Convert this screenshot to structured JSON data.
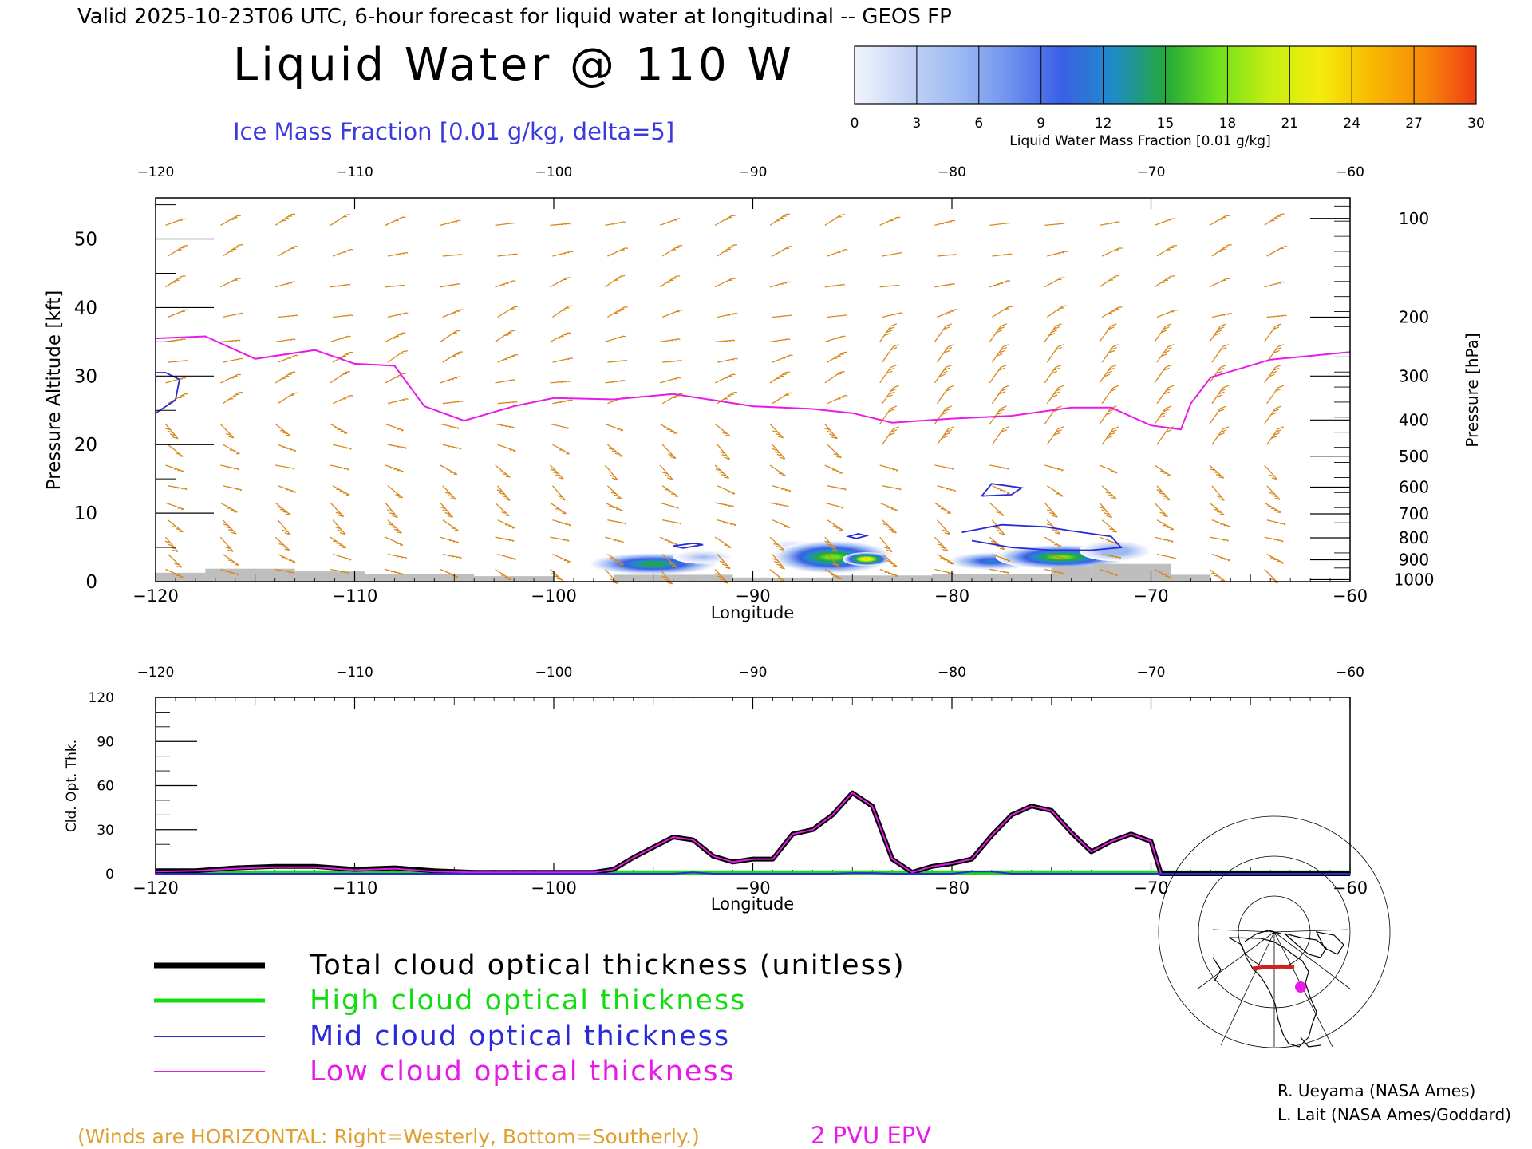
{
  "header": {
    "valid_line": "Valid 2025-10-23T06 UTC, 6-hour forecast for liquid water at longitudinal -- GEOS FP",
    "title": "Liquid Water @ 110 W",
    "subtitle": "Ice Mass Fraction [0.01 g/kg, delta=5]"
  },
  "colorbar": {
    "label": "Liquid Water Mass Fraction [0.01 g/kg]",
    "ticks": [
      "0",
      "3",
      "6",
      "9",
      "12",
      "15",
      "18",
      "21",
      "24",
      "27",
      "30"
    ],
    "colors": [
      "#f2f4fb",
      "#c4d4f6",
      "#9dbaf2",
      "#6f92ef",
      "#3a5fe6",
      "#1f8cc8",
      "#22a83a",
      "#6fe01a",
      "#c6ee12",
      "#f4ec0c",
      "#f8b800",
      "#f78a08",
      "#f03c14"
    ]
  },
  "colors": {
    "wind_barb": "#d8881e",
    "epv": "#e81ae8",
    "ice": "#2a2ad8",
    "orography": "#bebebe"
  },
  "chart_data": [
    {
      "type": "heatmap",
      "name": "cross-section",
      "xlabel": "Longitude",
      "ylabel": "Pressure Altitude [kft]",
      "ylabel_right": "Pressure [hPa]",
      "xlim": [
        -120,
        -60
      ],
      "ylim": [
        0,
        56
      ],
      "x_ticks": [
        "−120",
        "−110",
        "−100",
        "−90",
        "−80",
        "−70",
        "−60"
      ],
      "y_ticks": [
        "0",
        "10",
        "20",
        "30",
        "40",
        "50"
      ],
      "pressure_ticks": [
        {
          "label": "100",
          "kft": 53
        },
        {
          "label": "200",
          "kft": 38.6
        },
        {
          "label": "300",
          "kft": 30
        },
        {
          "label": "400",
          "kft": 23.6
        },
        {
          "label": "500",
          "kft": 18.3
        },
        {
          "label": "600",
          "kft": 13.8
        },
        {
          "label": "700",
          "kft": 9.9
        },
        {
          "label": "800",
          "kft": 6.4
        },
        {
          "label": "900",
          "kft": 3.2
        },
        {
          "label": "1000",
          "kft": 0.3
        }
      ],
      "liquid_water_blobs": [
        {
          "lon": -95.0,
          "kft": 2.6,
          "rx": 3.2,
          "ry": 1.6,
          "max": 17
        },
        {
          "lon": -92.5,
          "kft": 3.6,
          "rx": 1.5,
          "ry": 1.0,
          "max": 5
        },
        {
          "lon": -88.0,
          "kft": 5.2,
          "rx": 1.2,
          "ry": 0.9,
          "max": 3
        },
        {
          "lon": -86.0,
          "kft": 3.6,
          "rx": 3.0,
          "ry": 2.4,
          "max": 20
        },
        {
          "lon": -84.3,
          "kft": 3.3,
          "rx": 1.2,
          "ry": 1.0,
          "max": 28
        },
        {
          "lon": -78.0,
          "kft": 3.0,
          "rx": 2.2,
          "ry": 1.3,
          "max": 12
        },
        {
          "lon": -74.5,
          "kft": 3.6,
          "rx": 3.3,
          "ry": 1.8,
          "max": 20
        },
        {
          "lon": -71.8,
          "kft": 4.5,
          "rx": 1.8,
          "ry": 1.5,
          "max": 8
        }
      ],
      "epv_2pvu": {
        "lon": [
          -120,
          -117.5,
          -115,
          -112,
          -110,
          -108,
          -106.5,
          -104.5,
          -102,
          -100,
          -97,
          -94,
          -90,
          -87,
          -85,
          -83,
          -80,
          -77,
          -74,
          -72,
          -70,
          -68.5,
          -68,
          -67,
          -64,
          -60
        ],
        "kft": [
          35.5,
          35.8,
          32.5,
          33.8,
          31.8,
          31.5,
          25.6,
          23.5,
          25.6,
          26.8,
          26.6,
          27.4,
          25.6,
          25.2,
          24.6,
          23.2,
          23.8,
          24.2,
          25.4,
          25.4,
          22.8,
          22.2,
          26,
          29.8,
          32.4,
          33.5
        ]
      },
      "ice_contours": [
        {
          "lon": [
            -120,
            -119,
            -118.8,
            -119.5,
            -120
          ],
          "kft": [
            24.6,
            26.5,
            29.5,
            30.5,
            30.5
          ]
        },
        {
          "lon": [
            -93.5,
            -92.5,
            -93,
            -94,
            -93.5
          ],
          "kft": [
            4.9,
            5.4,
            5.6,
            5.2,
            4.9
          ]
        },
        {
          "lon": [
            -84.8,
            -84.3,
            -84.7,
            -85.2,
            -84.8
          ],
          "kft": [
            6.3,
            6.7,
            7.0,
            6.6,
            6.3
          ]
        },
        {
          "lon": [
            -78.5,
            -77,
            -76.5,
            -78,
            -78.5
          ],
          "kft": [
            12.5,
            12.7,
            13.7,
            14.3,
            12.5
          ]
        },
        {
          "lon": [
            -79.5,
            -77.5,
            -75.3,
            -74,
            -72,
            -71.5,
            -73,
            -75,
            -77,
            -79
          ],
          "kft": [
            7.2,
            8.3,
            8.0,
            7.4,
            6.6,
            5.0,
            4.6,
            4.6,
            5.0,
            6.0
          ]
        }
      ],
      "orography": [
        {
          "lon0": -120,
          "lon1": -117.5,
          "kft": 1.3
        },
        {
          "lon0": -117.5,
          "lon1": -113,
          "kft": 1.9
        },
        {
          "lon0": -113,
          "lon1": -109.5,
          "kft": 1.5
        },
        {
          "lon0": -109.5,
          "lon1": -104,
          "kft": 1.1
        },
        {
          "lon0": -104,
          "lon1": -100,
          "kft": 0.8
        },
        {
          "lon0": -97,
          "lon1": -91,
          "kft": 1.0
        },
        {
          "lon0": -91,
          "lon1": -86,
          "kft": 0.6
        },
        {
          "lon0": -86,
          "lon1": -81,
          "kft": 0.9
        },
        {
          "lon0": -81,
          "lon1": -75,
          "kft": 1.1
        },
        {
          "lon0": -75,
          "lon1": -73,
          "kft": 2.3
        },
        {
          "lon0": -73,
          "lon1": -69,
          "kft": 2.6
        },
        {
          "lon0": -69,
          "lon1": -67,
          "kft": 1.0
        }
      ]
    },
    {
      "type": "line",
      "name": "cloud-optical-thickness",
      "xlabel": "Longitude",
      "ylabel": "Cld. Opt. Thk.",
      "xlim": [
        -120,
        -60
      ],
      "ylim": [
        0,
        120
      ],
      "x_ticks": [
        "−120",
        "−110",
        "−100",
        "−90",
        "−80",
        "−70",
        "−60"
      ],
      "y_ticks": [
        "0",
        "30",
        "60",
        "90",
        "120"
      ],
      "x": [
        -120,
        -118,
        -116,
        -114,
        -112,
        -110,
        -108,
        -106,
        -104,
        -100,
        -98,
        -97,
        -96,
        -95,
        -94,
        -93,
        -92,
        -91,
        -90,
        -89,
        -88,
        -87,
        -86,
        -85,
        -84,
        -83,
        -82,
        -81,
        -80,
        -79,
        -78,
        -77,
        -76,
        -75,
        -74,
        -73,
        -72,
        -71,
        -70,
        -69.5,
        -65,
        -60
      ],
      "series": [
        {
          "name": "Total cloud optical thickness (unitless)",
          "color": "#000000",
          "width": 6,
          "values": [
            2,
            2,
            4,
            5,
            5,
            3,
            4,
            2,
            1,
            1,
            1,
            3,
            11,
            18,
            25,
            23,
            12,
            8,
            10,
            10,
            27,
            30,
            40,
            55,
            46,
            10,
            1,
            5,
            7,
            10,
            26,
            40,
            46,
            43,
            28,
            15,
            22,
            27,
            22,
            0,
            0,
            0
          ]
        },
        {
          "name": "Low cloud optical thickness",
          "color": "#e81ae8",
          "width": 2,
          "values": [
            1.5,
            2,
            3.5,
            4.5,
            4.5,
            2.5,
            3.5,
            1.5,
            1,
            1,
            1,
            3,
            11,
            18,
            25,
            23,
            12,
            8,
            10,
            10,
            27,
            30,
            40,
            55,
            46,
            10,
            1,
            5,
            7,
            10,
            26,
            40,
            46,
            43,
            28,
            15,
            22,
            27,
            22,
            0,
            0,
            0
          ]
        },
        {
          "name": "Mid cloud optical thickness",
          "color": "#2a2ad8",
          "width": 2,
          "values": [
            0,
            0,
            0,
            0,
            0,
            0,
            0,
            0,
            0,
            0,
            0,
            0,
            0,
            0,
            0,
            1,
            0,
            0,
            0,
            0,
            0,
            0,
            0,
            0.5,
            0.5,
            0,
            0,
            0,
            0,
            1.5,
            1.5,
            0,
            0,
            0,
            0,
            0,
            0,
            0,
            0,
            0,
            0,
            0
          ]
        },
        {
          "name": "High cloud optical thickness",
          "color": "#11dd11",
          "width": 5,
          "values": [
            1,
            1,
            1,
            1,
            1,
            1,
            1,
            1,
            1,
            1,
            1,
            1,
            1,
            1,
            1,
            1,
            1,
            1,
            1,
            1,
            1,
            1,
            1,
            1,
            1,
            1,
            1,
            1,
            1,
            1,
            1,
            1,
            1,
            1,
            1,
            1,
            1,
            1,
            1,
            1,
            1,
            1
          ]
        }
      ]
    }
  ],
  "legend": {
    "items": [
      {
        "label": "Total cloud optical thickness (unitless)",
        "color": "#000000",
        "width": 7
      },
      {
        "label": "High cloud optical thickness",
        "color": "#11dd11",
        "width": 5
      },
      {
        "label": "Mid cloud optical thickness",
        "color": "#2a2ad8",
        "width": 2
      },
      {
        "label": "Low cloud optical thickness",
        "color": "#e81ae8",
        "width": 2
      }
    ]
  },
  "footer": {
    "winds_note": "(Winds are HORIZONTAL: Right=Westerly, Bottom=Southerly.)",
    "epv_label": "2 PVU EPV",
    "credit1": "R. Ueyama (NASA Ames)",
    "credit2": "L. Lait (NASA Ames/Goddard)"
  }
}
